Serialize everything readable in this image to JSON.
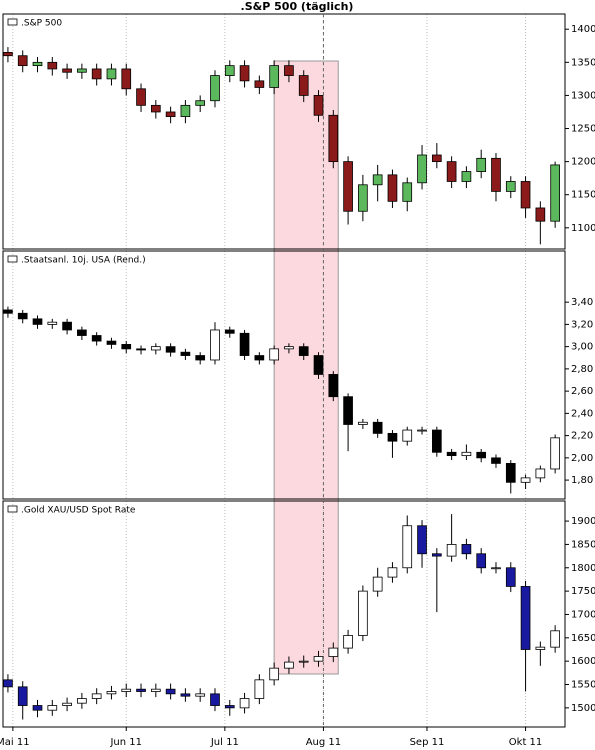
{
  "x_axis": {
    "x": [
      0,
      3,
      6,
      9,
      12,
      15,
      18,
      21,
      24,
      27,
      30,
      33,
      36,
      39,
      42,
      45,
      48,
      51,
      54,
      57,
      60,
      63,
      66,
      69,
      72,
      75,
      78,
      81,
      84,
      87,
      90,
      93,
      96,
      99,
      102,
      105,
      108,
      111
    ],
    "xlim": [
      -1,
      113
    ],
    "xticks": [
      {
        "value": 1,
        "label": "Mai 11"
      },
      {
        "value": 24,
        "label": "Jun 11"
      },
      {
        "value": 44,
        "label": "Jul 11"
      },
      {
        "value": 64,
        "label": "Aug 11"
      },
      {
        "value": 85,
        "label": "Sep 11"
      },
      {
        "value": 105,
        "label": "Okt 11"
      }
    ],
    "grid": true,
    "highlight": [
      54,
      67
    ],
    "marker_x": 64
  },
  "title": ".S&P 500 (täglich)",
  "chart_data": [
    {
      "type": "candlestick",
      "ylim": [
        1068,
        1423
      ],
      "yticks": [
        1100,
        1150,
        1200,
        1250,
        1300,
        1350,
        1400
      ],
      "up_color": "#5cb85c",
      "down_color": "#8b1a1a",
      "series": [
        {
          "name": ".S&P 500",
          "open": [
            1365,
            1360,
            1345,
            1350,
            1340,
            1335,
            1340,
            1325,
            1340,
            1310,
            1285,
            1275,
            1268,
            1285,
            1292,
            1330,
            1345,
            1322,
            1312,
            1345,
            1330,
            1300,
            1270,
            1200,
            1125,
            1165,
            1180,
            1140,
            1168,
            1210,
            1200,
            1170,
            1185,
            1205,
            1155,
            1170,
            1130,
            1110
          ],
          "high": [
            1373,
            1368,
            1358,
            1358,
            1348,
            1348,
            1348,
            1348,
            1348,
            1318,
            1293,
            1283,
            1293,
            1300,
            1338,
            1353,
            1353,
            1330,
            1353,
            1353,
            1338,
            1308,
            1278,
            1208,
            1180,
            1195,
            1188,
            1176,
            1225,
            1228,
            1208,
            1193,
            1218,
            1213,
            1178,
            1178,
            1140,
            1200
          ],
          "low": [
            1350,
            1335,
            1335,
            1330,
            1325,
            1325,
            1315,
            1315,
            1300,
            1275,
            1265,
            1258,
            1258,
            1275,
            1282,
            1320,
            1312,
            1302,
            1302,
            1320,
            1290,
            1260,
            1190,
            1105,
            1110,
            1140,
            1130,
            1125,
            1158,
            1190,
            1160,
            1160,
            1175,
            1140,
            1145,
            1115,
            1075,
            1100
          ],
          "close": [
            1360,
            1345,
            1350,
            1340,
            1335,
            1340,
            1325,
            1340,
            1310,
            1285,
            1275,
            1268,
            1285,
            1292,
            1330,
            1345,
            1322,
            1312,
            1345,
            1330,
            1300,
            1270,
            1200,
            1125,
            1165,
            1180,
            1140,
            1168,
            1210,
            1200,
            1170,
            1185,
            1205,
            1155,
            1170,
            1130,
            1110,
            1195
          ]
        }
      ]
    },
    {
      "type": "candlestick",
      "ylim": [
        1.63,
        3.86
      ],
      "yticks": [
        {
          "value": 1.8,
          "label": "1,80"
        },
        {
          "value": 2.0,
          "label": "2,00"
        },
        {
          "value": 2.2,
          "label": "2,20"
        },
        {
          "value": 2.4,
          "label": "2,40"
        },
        {
          "value": 2.6,
          "label": "2,60"
        },
        {
          "value": 2.8,
          "label": "2,80"
        },
        {
          "value": 3.0,
          "label": "3,00"
        },
        {
          "value": 3.2,
          "label": "3,20"
        },
        {
          "value": 3.4,
          "label": "3,40"
        }
      ],
      "up_color": "#ffffff",
      "down_color": "#000000",
      "series": [
        {
          "name": ".Staatsanl. 10j. USA (Rend.)",
          "open": [
            3.33,
            3.3,
            3.25,
            3.2,
            3.22,
            3.15,
            3.1,
            3.05,
            3.02,
            2.98,
            2.97,
            3.0,
            2.95,
            2.92,
            2.88,
            3.15,
            3.12,
            2.92,
            2.88,
            2.98,
            3.0,
            2.92,
            2.75,
            2.55,
            2.3,
            2.32,
            2.22,
            2.15,
            2.25,
            2.25,
            2.05,
            2.02,
            2.05,
            2.0,
            1.95,
            1.78,
            1.82,
            1.9
          ],
          "high": [
            3.36,
            3.33,
            3.28,
            3.25,
            3.25,
            3.18,
            3.13,
            3.08,
            3.05,
            3.01,
            3.03,
            3.03,
            2.98,
            2.95,
            3.22,
            3.18,
            3.15,
            2.95,
            3.01,
            3.03,
            3.03,
            2.95,
            2.78,
            2.58,
            2.35,
            2.35,
            2.25,
            2.28,
            2.28,
            2.28,
            2.08,
            2.12,
            2.08,
            2.03,
            1.98,
            1.85,
            1.93,
            2.21
          ],
          "low": [
            3.26,
            3.21,
            3.16,
            3.16,
            3.11,
            3.06,
            3.01,
            2.98,
            2.94,
            2.93,
            2.93,
            2.91,
            2.88,
            2.84,
            2.84,
            3.08,
            2.88,
            2.84,
            2.84,
            2.94,
            2.88,
            2.71,
            2.51,
            2.06,
            2.26,
            2.18,
            2.0,
            2.11,
            2.21,
            2.01,
            1.98,
            1.98,
            1.96,
            1.91,
            1.68,
            1.72,
            1.78,
            1.86
          ],
          "close": [
            3.3,
            3.25,
            3.2,
            3.22,
            3.15,
            3.1,
            3.05,
            3.02,
            2.98,
            2.97,
            3.0,
            2.95,
            2.92,
            2.88,
            3.15,
            3.12,
            2.92,
            2.88,
            2.98,
            3.0,
            2.92,
            2.75,
            2.55,
            2.3,
            2.32,
            2.22,
            2.15,
            2.25,
            2.25,
            2.05,
            2.02,
            2.05,
            2.0,
            1.95,
            1.78,
            1.82,
            1.9,
            2.18
          ]
        }
      ]
    },
    {
      "type": "candlestick",
      "ylim": [
        1459,
        1943
      ],
      "yticks": [
        1500,
        1550,
        1600,
        1650,
        1700,
        1750,
        1800,
        1850,
        1900
      ],
      "up_color": "#ffffff",
      "down_color": "#1a1aa0",
      "series": [
        {
          "name": ".Gold XAU/USD Spot Rate",
          "open": [
            1560,
            1545,
            1505,
            1495,
            1505,
            1510,
            1520,
            1530,
            1535,
            1540,
            1535,
            1540,
            1530,
            1525,
            1530,
            1505,
            1500,
            1520,
            1560,
            1585,
            1598,
            1600,
            1610,
            1628,
            1655,
            1750,
            1780,
            1800,
            1890,
            1830,
            1825,
            1850,
            1830,
            1800,
            1800,
            1760,
            1625,
            1630
          ],
          "high": [
            1572,
            1557,
            1517,
            1517,
            1522,
            1532,
            1542,
            1547,
            1552,
            1552,
            1552,
            1552,
            1542,
            1542,
            1542,
            1517,
            1532,
            1572,
            1597,
            1610,
            1612,
            1622,
            1640,
            1667,
            1762,
            1800,
            1812,
            1912,
            1902,
            1842,
            1915,
            1862,
            1842,
            1812,
            1812,
            1772,
            1642,
            1677
          ],
          "low": [
            1533,
            1475,
            1480,
            1483,
            1493,
            1498,
            1508,
            1518,
            1523,
            1523,
            1523,
            1518,
            1513,
            1513,
            1493,
            1483,
            1488,
            1508,
            1548,
            1573,
            1586,
            1588,
            1598,
            1616,
            1643,
            1738,
            1768,
            1788,
            1800,
            1705,
            1813,
            1818,
            1788,
            1788,
            1748,
            1535,
            1590,
            1618
          ],
          "close": [
            1545,
            1505,
            1495,
            1505,
            1510,
            1520,
            1530,
            1535,
            1540,
            1535,
            1540,
            1530,
            1525,
            1530,
            1505,
            1500,
            1520,
            1560,
            1585,
            1598,
            1600,
            1610,
            1628,
            1655,
            1750,
            1780,
            1800,
            1890,
            1830,
            1825,
            1850,
            1830,
            1800,
            1800,
            1760,
            1625,
            1630,
            1665
          ]
        }
      ]
    }
  ]
}
